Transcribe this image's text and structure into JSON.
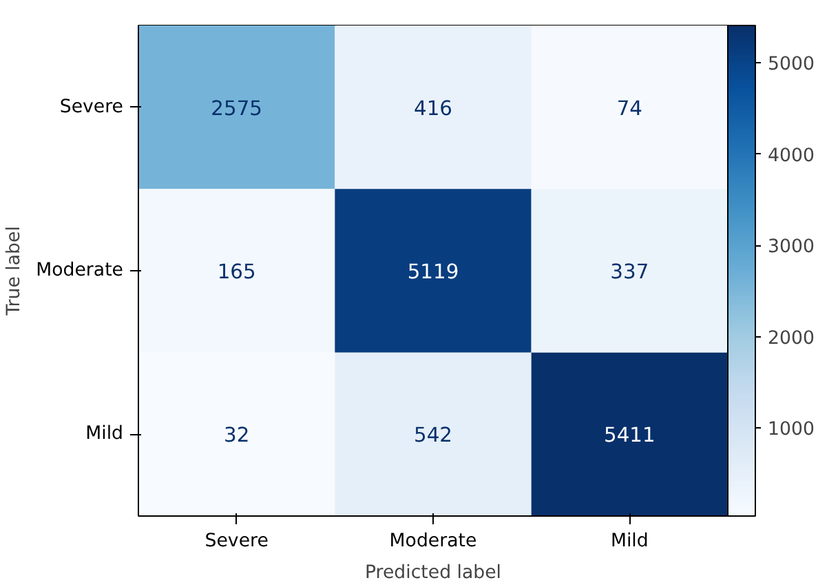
{
  "chart_data": {
    "type": "heatmap",
    "xlabel": "Predicted label",
    "ylabel": "True label",
    "categories": [
      "Severe",
      "Moderate",
      "Mild"
    ],
    "y_categories": [
      "Severe",
      "Moderate",
      "Mild"
    ],
    "cells": [
      [
        2575,
        416,
        74
      ],
      [
        165,
        5119,
        337
      ],
      [
        32,
        542,
        5411
      ]
    ],
    "clim": [
      32,
      5411
    ],
    "cticks": [
      1000,
      2000,
      3000,
      4000,
      5000
    ],
    "data_labels": true
  }
}
